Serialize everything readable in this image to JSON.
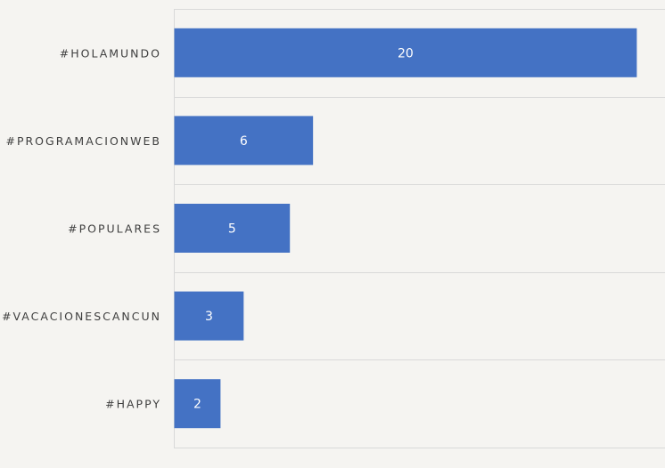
{
  "chart_data": {
    "type": "bar",
    "orientation": "horizontal",
    "categories": [
      "#HOLAMUNDO",
      "#PROGRAMACIONWEB",
      "#POPULARES",
      "#VACACIONESCANCUN",
      "#HAPPY"
    ],
    "values": [
      20,
      6,
      5,
      3,
      2
    ],
    "title": "",
    "xlabel": "",
    "ylabel": "",
    "xlim": [
      0,
      21.2
    ],
    "grid": true,
    "legend": "none",
    "bar_color": "#4472c4",
    "value_label_color": "#ffffff",
    "category_label_color": "#404040",
    "grid_color": "#d9d9d9",
    "background_color": "#f5f4f1"
  }
}
